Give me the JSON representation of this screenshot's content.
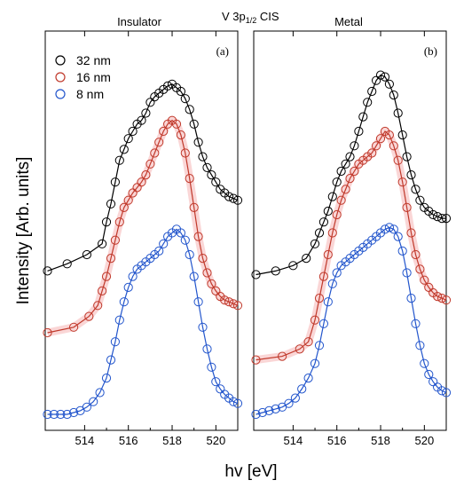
{
  "figure": {
    "suptitle_main": "V 3p",
    "suptitle_sub": "1/2",
    "suptitle_tail": " CIS",
    "ylabel": "Intensity [Arb. units]",
    "xlabel": "hv [eV]"
  },
  "legend": {
    "entries": [
      {
        "label": "32 nm",
        "color": "#000000"
      },
      {
        "label": "16 nm",
        "color": "#c0392b"
      },
      {
        "label": "8 nm",
        "color": "#2255cc"
      }
    ]
  },
  "chart_data": [
    {
      "type": "scatter",
      "title": "Insulator",
      "panel_label": "(a)",
      "xlabel": "hv [eV]",
      "ylabel": "Intensity [Arb. units]",
      "xlim": [
        512.2,
        521
      ],
      "ylim": [
        0,
        1
      ],
      "xticks": [
        514,
        516,
        518,
        520
      ],
      "grid": false,
      "legend_position": "top-left",
      "series": [
        {
          "name": "32 nm",
          "color": "#000000",
          "x": [
            512.3,
            513.2,
            514.1,
            514.8,
            515.0,
            515.2,
            515.4,
            515.6,
            515.8,
            516.0,
            516.2,
            516.4,
            516.6,
            516.8,
            517.0,
            517.2,
            517.4,
            517.6,
            517.8,
            518.0,
            518.2,
            518.4,
            518.6,
            518.8,
            519.0,
            519.2,
            519.4,
            519.6,
            519.8,
            520.0,
            520.2,
            520.4,
            520.6,
            520.8,
            521.0
          ],
          "y": [
            0.395,
            0.415,
            0.44,
            0.47,
            0.53,
            0.58,
            0.64,
            0.7,
            0.73,
            0.76,
            0.78,
            0.8,
            0.81,
            0.83,
            0.86,
            0.875,
            0.885,
            0.895,
            0.905,
            0.91,
            0.9,
            0.89,
            0.87,
            0.84,
            0.8,
            0.75,
            0.71,
            0.68,
            0.66,
            0.64,
            0.62,
            0.61,
            0.6,
            0.595,
            0.59
          ]
        },
        {
          "name": "16 nm",
          "color": "#c0392b",
          "x": [
            512.3,
            513.5,
            514.2,
            514.6,
            514.8,
            515.0,
            515.2,
            515.4,
            515.6,
            515.8,
            516.0,
            516.2,
            516.4,
            516.6,
            516.8,
            517.0,
            517.2,
            517.4,
            517.6,
            517.8,
            518.0,
            518.2,
            518.4,
            518.6,
            518.8,
            519.0,
            519.2,
            519.4,
            519.6,
            519.8,
            520.0,
            520.2,
            520.4,
            520.6,
            520.8,
            521.0
          ],
          "y": [
            0.225,
            0.24,
            0.27,
            0.3,
            0.34,
            0.38,
            0.43,
            0.48,
            0.53,
            0.57,
            0.59,
            0.61,
            0.625,
            0.64,
            0.66,
            0.69,
            0.72,
            0.75,
            0.78,
            0.8,
            0.81,
            0.8,
            0.77,
            0.72,
            0.65,
            0.57,
            0.49,
            0.43,
            0.39,
            0.36,
            0.34,
            0.325,
            0.315,
            0.31,
            0.305,
            0.3
          ]
        },
        {
          "name": "8 nm",
          "color": "#2255cc",
          "x": [
            512.3,
            512.6,
            512.9,
            513.2,
            513.5,
            513.8,
            514.1,
            514.4,
            514.7,
            515.0,
            515.2,
            515.4,
            515.6,
            515.8,
            516.0,
            516.2,
            516.4,
            516.6,
            516.8,
            517.0,
            517.2,
            517.4,
            517.6,
            517.8,
            518.0,
            518.2,
            518.4,
            518.6,
            518.8,
            519.0,
            519.2,
            519.4,
            519.6,
            519.8,
            520.0,
            520.2,
            520.4,
            520.6,
            520.8,
            521.0
          ],
          "y": [
            0.0,
            0.0,
            0.0,
            0.0,
            0.005,
            0.01,
            0.02,
            0.035,
            0.06,
            0.1,
            0.15,
            0.2,
            0.26,
            0.31,
            0.35,
            0.38,
            0.4,
            0.41,
            0.42,
            0.43,
            0.44,
            0.45,
            0.47,
            0.49,
            0.5,
            0.51,
            0.5,
            0.48,
            0.44,
            0.38,
            0.31,
            0.24,
            0.18,
            0.13,
            0.09,
            0.07,
            0.055,
            0.045,
            0.035,
            0.03
          ]
        }
      ]
    },
    {
      "type": "scatter",
      "title": "Metal",
      "panel_label": "(b)",
      "xlabel": "hv [eV]",
      "ylabel": "Intensity [Arb. units]",
      "xlim": [
        512.2,
        521
      ],
      "ylim": [
        0,
        1
      ],
      "xticks": [
        514,
        516,
        518,
        520
      ],
      "grid": false,
      "series": [
        {
          "name": "32 nm",
          "color": "#000000",
          "x": [
            512.3,
            513.2,
            514.0,
            514.6,
            515.0,
            515.2,
            515.4,
            515.6,
            515.8,
            516.0,
            516.2,
            516.4,
            516.6,
            516.8,
            517.0,
            517.2,
            517.4,
            517.6,
            517.8,
            518.0,
            518.2,
            518.4,
            518.6,
            518.8,
            519.0,
            519.2,
            519.4,
            519.6,
            519.8,
            520.0,
            520.2,
            520.4,
            520.6,
            520.8,
            521.0
          ],
          "y": [
            0.385,
            0.395,
            0.41,
            0.43,
            0.47,
            0.5,
            0.53,
            0.56,
            0.6,
            0.64,
            0.67,
            0.69,
            0.71,
            0.74,
            0.78,
            0.82,
            0.86,
            0.89,
            0.92,
            0.935,
            0.93,
            0.91,
            0.88,
            0.83,
            0.77,
            0.71,
            0.66,
            0.62,
            0.59,
            0.57,
            0.56,
            0.55,
            0.545,
            0.54,
            0.54
          ]
        },
        {
          "name": "16 nm",
          "color": "#c0392b",
          "x": [
            512.3,
            513.5,
            514.3,
            514.7,
            515.0,
            515.2,
            515.4,
            515.6,
            515.8,
            516.0,
            516.2,
            516.4,
            516.6,
            516.8,
            517.0,
            517.2,
            517.4,
            517.6,
            517.8,
            518.0,
            518.2,
            518.4,
            518.6,
            518.8,
            519.0,
            519.2,
            519.4,
            519.6,
            519.8,
            520.0,
            520.2,
            520.4,
            520.6,
            520.8,
            521.0
          ],
          "y": [
            0.15,
            0.16,
            0.18,
            0.2,
            0.26,
            0.32,
            0.38,
            0.44,
            0.5,
            0.55,
            0.59,
            0.62,
            0.65,
            0.67,
            0.69,
            0.7,
            0.71,
            0.72,
            0.74,
            0.76,
            0.78,
            0.77,
            0.74,
            0.7,
            0.64,
            0.57,
            0.5,
            0.44,
            0.4,
            0.37,
            0.35,
            0.335,
            0.325,
            0.32,
            0.315
          ]
        },
        {
          "name": "8 nm",
          "color": "#2255cc",
          "x": [
            512.3,
            512.6,
            512.9,
            513.2,
            513.5,
            513.8,
            514.1,
            514.4,
            514.7,
            515.0,
            515.2,
            515.4,
            515.6,
            515.8,
            516.0,
            516.2,
            516.4,
            516.6,
            516.8,
            517.0,
            517.2,
            517.4,
            517.6,
            517.8,
            518.0,
            518.2,
            518.4,
            518.6,
            518.8,
            519.0,
            519.2,
            519.4,
            519.6,
            519.8,
            520.0,
            520.2,
            520.4,
            520.6,
            520.8,
            521.0
          ],
          "y": [
            0.0,
            0.005,
            0.01,
            0.015,
            0.02,
            0.03,
            0.045,
            0.07,
            0.1,
            0.14,
            0.19,
            0.25,
            0.31,
            0.36,
            0.39,
            0.41,
            0.42,
            0.43,
            0.44,
            0.45,
            0.46,
            0.47,
            0.48,
            0.49,
            0.5,
            0.51,
            0.515,
            0.51,
            0.49,
            0.45,
            0.39,
            0.32,
            0.25,
            0.19,
            0.14,
            0.11,
            0.09,
            0.075,
            0.065,
            0.06
          ]
        }
      ]
    }
  ]
}
